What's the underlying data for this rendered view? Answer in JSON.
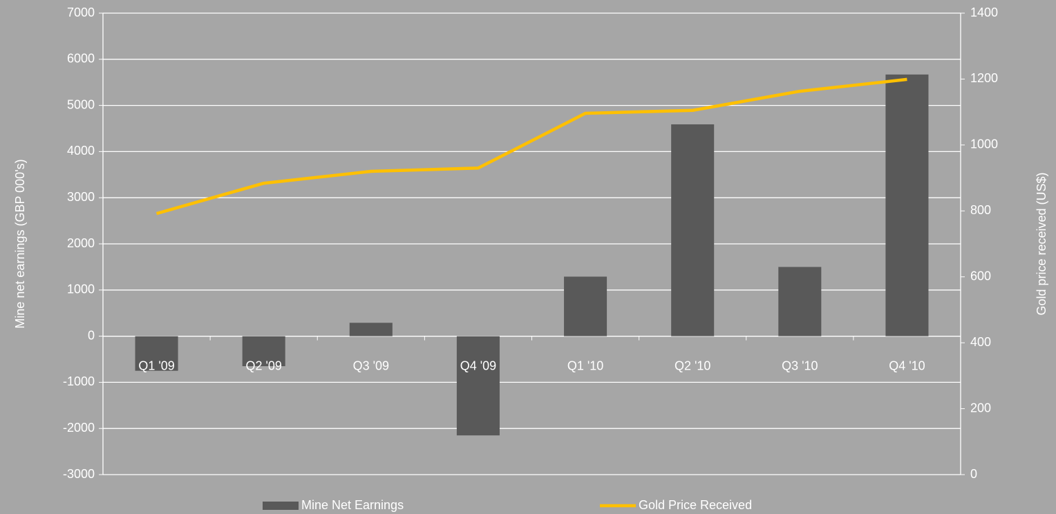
{
  "chart_data": {
    "type": "bar_line",
    "categories": [
      "Q1 '09",
      "Q2 '09",
      "Q3 '09",
      "Q4 '09",
      "Q1 '10",
      "Q2 '10",
      "Q3 '10",
      "Q4 '10"
    ],
    "series": [
      {
        "name": "Mine Net Earnings",
        "type": "bar",
        "color": "#595959",
        "values": [
          -750,
          -650,
          290,
          -2150,
          1290,
          4590,
          1500,
          5670
        ]
      },
      {
        "name": "Gold Price Received",
        "type": "line",
        "axis": "y2",
        "color": "#ffc000",
        "values": [
          792,
          884,
          920,
          930,
          1096,
          1105,
          1163,
          1199
        ]
      }
    ],
    "ylabel": "Mine net earnings (GBP 000's)",
    "y2label": "Gold price received (US$)",
    "ylim": [
      -3000,
      7000
    ],
    "yticks": [
      -3000,
      -2000,
      -1000,
      0,
      1000,
      2000,
      3000,
      4000,
      5000,
      6000,
      7000
    ],
    "y2lim": [
      0,
      1400
    ],
    "y2ticks": [
      0,
      200,
      400,
      600,
      800,
      1000,
      1200,
      1400
    ],
    "grid": true,
    "legend": "bottom"
  }
}
